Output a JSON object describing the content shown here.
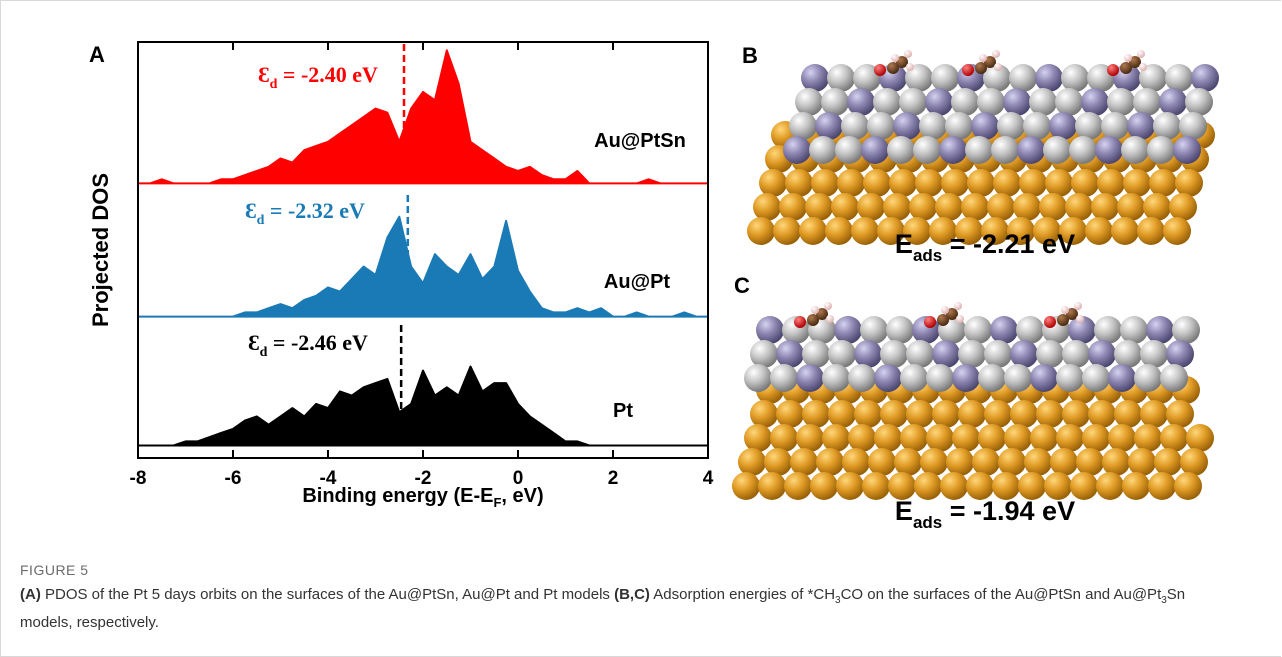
{
  "chart_data": {
    "type": "area-offset",
    "panel_label": "A",
    "ylabel": "Projected DOS",
    "xlabel": {
      "main": "Binding energy (E-E",
      "sub": "F",
      "end": ", eV)"
    },
    "x": [
      -8,
      -7.75,
      -7.5,
      -7.25,
      -7,
      -6.75,
      -6.5,
      -6.25,
      -6,
      -5.75,
      -5.5,
      -5.25,
      -5,
      -4.75,
      -4.5,
      -4.25,
      -4,
      -3.75,
      -3.5,
      -3.25,
      -3,
      -2.75,
      -2.5,
      -2.25,
      -2,
      -1.75,
      -1.5,
      -1.25,
      -1,
      -0.75,
      -0.5,
      -0.25,
      0,
      0.25,
      0.5,
      0.75,
      1,
      1.25,
      1.5,
      1.75,
      2,
      2.25,
      2.5,
      2.75,
      3,
      3.25,
      3.5,
      3.75,
      4
    ],
    "series": [
      {
        "name": "Au@PtSn",
        "color": "#ff0000",
        "values": [
          6.6,
          6.6,
          6.7,
          6.6,
          6.6,
          6.6,
          6.6,
          6.7,
          6.7,
          6.8,
          6.9,
          7.0,
          7.2,
          7.1,
          7.4,
          7.5,
          7.6,
          7.8,
          8.0,
          8.2,
          8.4,
          8.3,
          7.6,
          8.4,
          8.8,
          8.6,
          9.8,
          9.0,
          7.6,
          7.4,
          7.2,
          7.0,
          6.9,
          7.0,
          6.8,
          6.7,
          6.7,
          6.9,
          6.6,
          6.6,
          6.6,
          6.6,
          6.6,
          6.7,
          6.6,
          6.6,
          6.6,
          6.6,
          6.6
        ]
      },
      {
        "name": "Au@Pt",
        "color": "#1a7ab5",
        "values": [
          3.4,
          3.4,
          3.4,
          3.4,
          3.4,
          3.4,
          3.4,
          3.4,
          3.4,
          3.5,
          3.5,
          3.6,
          3.7,
          3.6,
          3.8,
          3.9,
          4.1,
          4.0,
          4.3,
          4.6,
          4.4,
          5.3,
          5.8,
          4.6,
          4.2,
          4.9,
          4.6,
          4.4,
          4.9,
          4.3,
          4.6,
          5.7,
          4.5,
          4.0,
          3.6,
          3.5,
          3.5,
          3.6,
          3.5,
          3.6,
          3.4,
          3.4,
          3.5,
          3.4,
          3.4,
          3.4,
          3.5,
          3.4,
          3.4
        ]
      },
      {
        "name": "Pt",
        "color": "#000000",
        "values": [
          0.3,
          0.3,
          0.3,
          0.3,
          0.4,
          0.4,
          0.5,
          0.6,
          0.7,
          0.9,
          1.0,
          0.8,
          1.0,
          1.2,
          1.0,
          1.3,
          1.2,
          1.6,
          1.5,
          1.7,
          1.8,
          1.9,
          1.1,
          1.3,
          2.1,
          1.5,
          1.7,
          1.5,
          2.2,
          1.6,
          1.8,
          1.8,
          1.3,
          1.0,
          0.8,
          0.6,
          0.4,
          0.4,
          0.3,
          0.3,
          0.3,
          0.3,
          0.3,
          0.3,
          0.3,
          0.3,
          0.3,
          0.3,
          0.3
        ]
      }
    ],
    "annotations": [
      {
        "symbol": "Ɛ",
        "sub": "d",
        "text": " = -2.40 eV",
        "x": -2.4,
        "color": "#ff0000"
      },
      {
        "symbol": "Ɛ",
        "sub": "d",
        "text": " = -2.32 eV",
        "x": -2.32,
        "color": "#1a7ab5"
      },
      {
        "symbol": "Ɛ",
        "sub": "d",
        "text": " = -2.46 eV",
        "x": -2.46,
        "color": "#000000"
      }
    ],
    "xlim": [
      -8,
      4
    ],
    "xticks": [
      -8,
      -6,
      -4,
      -2,
      0,
      2,
      4
    ],
    "ylim": [
      0,
      10
    ],
    "grid": false
  },
  "panels": {
    "b": "B",
    "c": "C"
  },
  "adsorption": [
    {
      "symbol": "E",
      "sub": "ads",
      "text": " = -2.21 eV"
    },
    {
      "symbol": "E",
      "sub": "ads",
      "text": " = -1.94 eV"
    }
  ],
  "caption": {
    "label": "FIGURE 5",
    "parts": [
      "(A)",
      " PDOS of the Pt 5 days orbits on the surfaces of the Au@PtSn, Au@Pt and Pt models ",
      "(B,C)",
      " Adsorption energies of *CH",
      "3",
      "CO on the surfaces of the Au@PtSn and Au@Pt",
      "3",
      "Sn models, respectively."
    ]
  }
}
